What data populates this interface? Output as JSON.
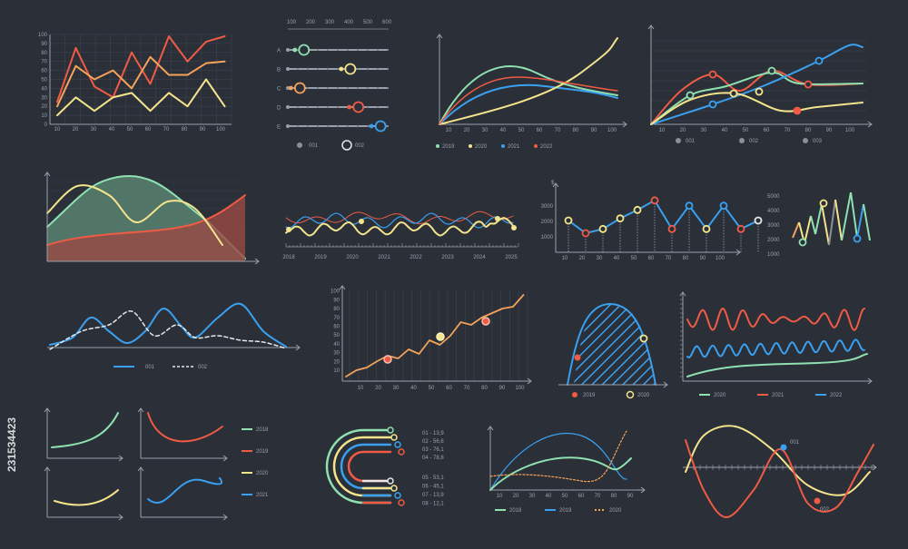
{
  "colors": {
    "bg": "#2b2f38",
    "axis": "#9aa0aa",
    "grid": "#3a3f4a",
    "red": "#ef5b45",
    "yellow": "#f4e48c",
    "green": "#8fe1b0",
    "blue": "#3aa0f0",
    "orange": "#f5a35b",
    "white": "#e8e8e8",
    "gray": "#8b8f98"
  },
  "side_text": "231534423",
  "chart_data": [
    {
      "type": "line",
      "x": [
        10,
        20,
        30,
        40,
        50,
        60,
        70,
        80,
        90,
        100
      ],
      "y_ticks": [
        0,
        10,
        20,
        30,
        40,
        50,
        60,
        70,
        80,
        90,
        100
      ],
      "series": [
        {
          "color": "red",
          "values": [
            25,
            85,
            42,
            30,
            80,
            45,
            98,
            70,
            92,
            98
          ]
        },
        {
          "color": "orange",
          "values": [
            20,
            65,
            50,
            60,
            40,
            75,
            55,
            55,
            68,
            70
          ]
        },
        {
          "color": "yellow",
          "values": [
            10,
            30,
            15,
            30,
            35,
            15,
            35,
            20,
            50,
            20
          ]
        }
      ],
      "grid": true
    },
    {
      "type": "slider-set",
      "scale_ticks": [
        "100",
        "200",
        "300",
        "400",
        "500",
        "600"
      ],
      "rows": [
        {
          "label": "A",
          "color": "green",
          "value": 0.16
        },
        {
          "label": "B",
          "color": "yellow",
          "value": 0.62
        },
        {
          "label": "C",
          "color": "orange",
          "value": 0.12
        },
        {
          "label": "D",
          "color": "red",
          "value": 0.7
        },
        {
          "label": "E",
          "color": "blue",
          "value": 0.92
        }
      ],
      "legend": [
        "001",
        "002"
      ]
    },
    {
      "type": "line",
      "x_ticks": [
        "10",
        "20",
        "30",
        "40",
        "50",
        "60",
        "70",
        "80",
        "90",
        "100"
      ],
      "series": [
        {
          "name": "2019",
          "color": "green"
        },
        {
          "name": "2020",
          "color": "yellow"
        },
        {
          "name": "2021",
          "color": "blue"
        },
        {
          "name": "2022",
          "color": "red"
        }
      ]
    },
    {
      "type": "line",
      "x_ticks": [
        "10",
        "20",
        "30",
        "40",
        "50",
        "60",
        "70",
        "80",
        "90",
        "100"
      ],
      "legend": [
        "001",
        "002",
        "003"
      ],
      "series": [
        {
          "color": "red"
        },
        {
          "color": "green"
        },
        {
          "color": "blue"
        },
        {
          "color": "yellow"
        }
      ]
    },
    {
      "type": "area",
      "series": [
        {
          "color": "green"
        },
        {
          "color": "yellow"
        },
        {
          "color": "red"
        }
      ]
    },
    {
      "type": "line",
      "x_ticks": [
        "2018",
        "2019",
        "2020",
        "2021",
        "2022",
        "2023",
        "2024",
        "2025"
      ],
      "series": [
        {
          "color": "red"
        },
        {
          "color": "blue"
        },
        {
          "color": "yellow"
        }
      ]
    },
    {
      "type": "line",
      "ylabel": "$",
      "y_ticks": [
        "1000",
        "2000",
        "3000"
      ],
      "x_ticks": [
        "10",
        "20",
        "30",
        "40",
        "50",
        "60",
        "70",
        "80",
        "90",
        "100"
      ],
      "series": [
        {
          "color": "blue",
          "values": [
            1500,
            900,
            1100,
            1600,
            2000,
            2450,
            1100,
            2200,
            1100,
            2200,
            1100,
            1500
          ]
        }
      ]
    },
    {
      "type": "line",
      "y_ticks": [
        "5000",
        "4000",
        "3000",
        "2000",
        "1000"
      ],
      "series": [
        {
          "color": "multi"
        }
      ]
    },
    {
      "type": "line",
      "legend": [
        "001",
        "002"
      ],
      "series": [
        {
          "name": "001",
          "color": "blue"
        },
        {
          "name": "002",
          "color": "white",
          "dashed": true
        }
      ]
    },
    {
      "type": "line",
      "y_ticks": [
        "10",
        "20",
        "30",
        "40",
        "50",
        "60",
        "70",
        "80",
        "90",
        "100"
      ],
      "x_ticks": [
        "10",
        "20",
        "30",
        "40",
        "50",
        "60",
        "70",
        "80",
        "90",
        "100"
      ],
      "series": [
        {
          "color": "orange",
          "values": [
            5,
            12,
            15,
            22,
            28,
            25,
            35,
            30,
            45,
            40,
            50,
            65,
            62,
            70,
            75,
            80,
            82,
            95
          ]
        }
      ]
    },
    {
      "type": "area",
      "legend": [
        "2019",
        "2020"
      ],
      "series": [
        {
          "name": "2019",
          "color": "red"
        },
        {
          "name": "2020",
          "color": "yellow"
        }
      ]
    },
    {
      "type": "line",
      "legend": [
        "2020",
        "2021",
        "2022"
      ],
      "series": [
        {
          "name": "2020",
          "color": "green"
        },
        {
          "name": "2021",
          "color": "red"
        },
        {
          "name": "2022",
          "color": "blue"
        }
      ]
    },
    {
      "type": "line",
      "legend": [
        "2018",
        "2019",
        "2020",
        "2021"
      ],
      "series": [
        {
          "name": "2018",
          "color": "green"
        },
        {
          "name": "2019",
          "color": "red"
        },
        {
          "name": "2020",
          "color": "yellow"
        },
        {
          "name": "2021",
          "color": "blue"
        }
      ]
    },
    {
      "type": "radial-bar",
      "items": [
        {
          "label": "01 - 13,9",
          "color": "green"
        },
        {
          "label": "02 - 56,6",
          "color": "yellow"
        },
        {
          "label": "03 - 76,1",
          "color": "blue"
        },
        {
          "label": "04 - 78,8",
          "color": "red"
        },
        {
          "label": "05 - 53,1",
          "color": "red"
        },
        {
          "label": "06 - 45,1",
          "color": "blue"
        },
        {
          "label": "07 - 13,9",
          "color": "yellow"
        },
        {
          "label": "08 - 12,1",
          "color": "white"
        }
      ]
    },
    {
      "type": "line",
      "x_ticks": [
        "10",
        "20",
        "30",
        "40",
        "50",
        "60",
        "70",
        "80",
        "90"
      ],
      "legend": [
        "2018",
        "2019",
        "2020"
      ],
      "series": [
        {
          "name": "2018",
          "color": "green"
        },
        {
          "name": "2019",
          "color": "blue"
        },
        {
          "name": "2020",
          "color": "orange",
          "dashed": true
        }
      ]
    },
    {
      "type": "line",
      "annotations": [
        "001",
        "002"
      ],
      "series": [
        {
          "color": "red"
        },
        {
          "color": "yellow"
        }
      ]
    }
  ]
}
